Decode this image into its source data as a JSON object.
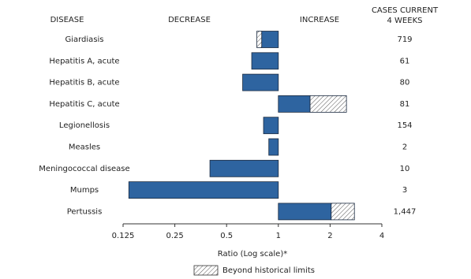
{
  "chart_data": {
    "type": "bar",
    "headers": {
      "disease": "DISEASE",
      "decrease": "DECREASE",
      "increase": "INCREASE",
      "cases": [
        "CASES CURRENT",
        "4 WEEKS"
      ]
    },
    "categories": [
      "Giardiasis",
      "Hepatitis A, acute",
      "Hepatitis B, acute",
      "Hepatitis C, acute",
      "Legionellosis",
      "Measles",
      "Meningococcal disease",
      "Mumps",
      "Pertussis"
    ],
    "values": [
      0.75,
      0.7,
      0.62,
      2.49,
      0.82,
      0.88,
      0.4,
      0.135,
      2.77
    ],
    "historical_limit": [
      0.8,
      null,
      null,
      1.53,
      null,
      null,
      null,
      null,
      2.03
    ],
    "cases": {
      "values": [
        719,
        61,
        80,
        81,
        154,
        2,
        10,
        3,
        1447
      ],
      "value_labels": [
        "719",
        "61",
        "80",
        "81",
        "154",
        "2",
        "10",
        "3",
        "1,447"
      ]
    },
    "color": "#2e64a0",
    "xlim": [
      0.125,
      4
    ],
    "xticks": [
      0.125,
      0.25,
      0.5,
      1,
      2,
      4
    ],
    "log_scale": true,
    "xlabel": "Ratio (Log scale)*",
    "legend": "Beyond historical limits"
  }
}
